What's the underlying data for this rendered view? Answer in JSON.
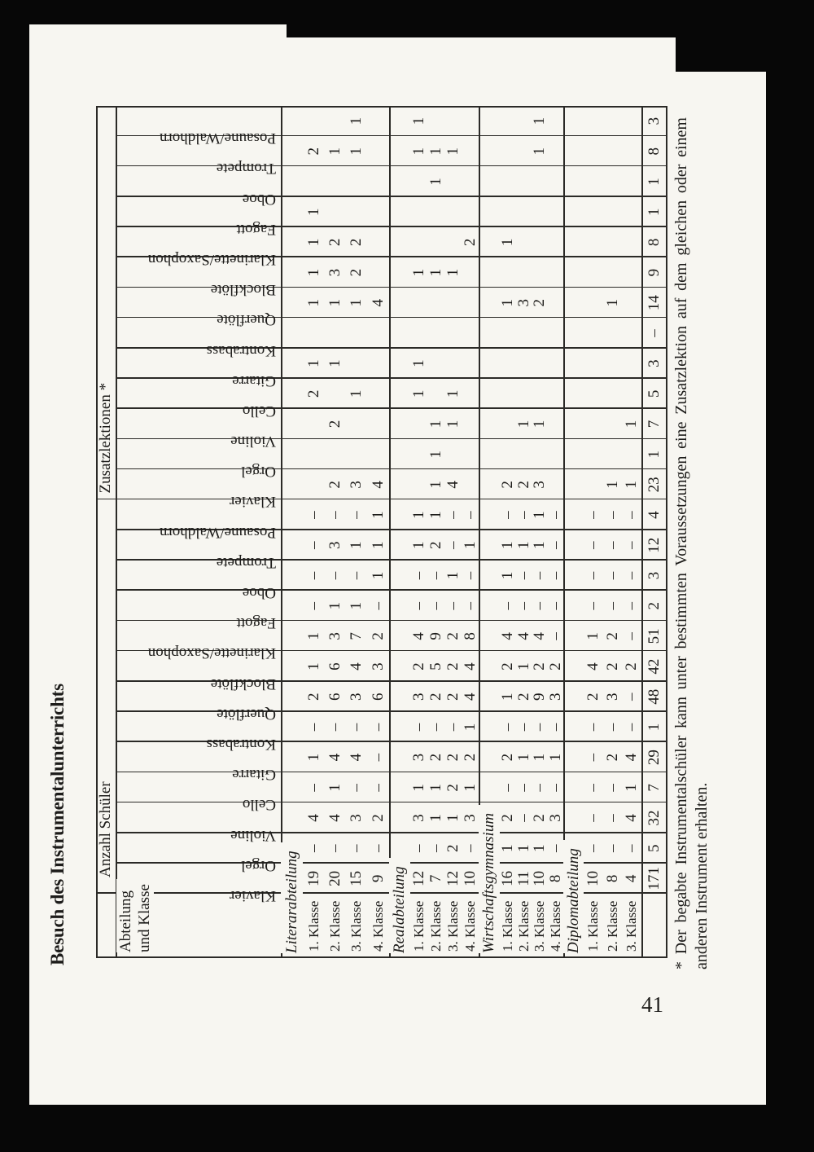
{
  "page": {
    "title": "Besuch des Instrumentalunterrichts",
    "page_number": "41",
    "footnote": {
      "line1": "* Der begabte Instrumentalschüler kann unter bestimmten Voraussetzungen eine Zusatzlektion auf dem gleichen oder einem",
      "line2": "anderen Instrument erhalten."
    }
  },
  "table": {
    "corner_header": {
      "line1": "Abteilung",
      "line2": "und Klasse"
    },
    "group_headers": {
      "anzahl": "Anzahl Schüler",
      "zusatz": "Zusatzlektionen *"
    },
    "instruments": [
      "Klavier",
      "Orgel",
      "Violine",
      "Cello",
      "Gitarre",
      "Kontrabass",
      "Querflöte",
      "Blockflöte",
      "Klarinette/Saxophon",
      "Fagott",
      "Oboe",
      "Trompete",
      "Posaune/Waldhorn"
    ],
    "sections": [
      {
        "name": "Literarabteilung",
        "rows": [
          {
            "label": "1. Klasse",
            "anzahl": [
              "19",
              "–",
              "4",
              "–",
              "1",
              "–",
              "2",
              "1",
              "1",
              "–",
              "–",
              "–",
              "–"
            ],
            "zusatz": [
              "",
              "",
              "",
              "2",
              "1",
              "",
              "1",
              "1",
              "1",
              "1",
              "",
              "2",
              ""
            ]
          },
          {
            "label": "2. Klasse",
            "anzahl": [
              "20",
              "–",
              "4",
              "1",
              "4",
              "–",
              "6",
              "6",
              "3",
              "1",
              "–",
              "3",
              "–"
            ],
            "zusatz": [
              "2",
              "",
              "2",
              "",
              "1",
              "",
              "1",
              "3",
              "2",
              "",
              "",
              "1",
              ""
            ]
          },
          {
            "label": "3. Klasse",
            "anzahl": [
              "15",
              "–",
              "3",
              "–",
              "4",
              "–",
              "3",
              "4",
              "7",
              "1",
              "–",
              "1",
              "–"
            ],
            "zusatz": [
              "3",
              "",
              "",
              "1",
              "",
              "",
              "1",
              "2",
              "2",
              "",
              "",
              "1",
              "1"
            ]
          },
          {
            "label": "4. Klasse",
            "anzahl": [
              "9",
              "–",
              "2",
              "–",
              "–",
              "–",
              "6",
              "3",
              "2",
              "–",
              "1",
              "1",
              "1"
            ],
            "zusatz": [
              "4",
              "",
              "",
              "",
              "",
              "",
              "4",
              "",
              "",
              "",
              "",
              "",
              ""
            ]
          }
        ]
      },
      {
        "name": "Realabteilung",
        "rows": [
          {
            "label": "1. Klasse",
            "anzahl": [
              "12",
              "–",
              "3",
              "1",
              "3",
              "–",
              "3",
              "2",
              "4",
              "–",
              "–",
              "1",
              "1"
            ],
            "zusatz": [
              "",
              "",
              "",
              "1",
              "1",
              "",
              "",
              "1",
              "",
              "",
              "",
              "1",
              "1"
            ]
          },
          {
            "label": "2. Klasse",
            "anzahl": [
              "7",
              "–",
              "1",
              "1",
              "2",
              "–",
              "2",
              "5",
              "9",
              "–",
              "–",
              "2",
              "1"
            ],
            "zusatz": [
              "1",
              "1",
              "1",
              "",
              "",
              "",
              "",
              "1",
              "",
              "",
              "1",
              "1",
              ""
            ]
          },
          {
            "label": "3. Klasse",
            "anzahl": [
              "12",
              "2",
              "1",
              "2",
              "2",
              "–",
              "2",
              "2",
              "2",
              "–",
              "1",
              "–",
              "–"
            ],
            "zusatz": [
              "4",
              "",
              "1",
              "1",
              "",
              "",
              "",
              "1",
              "",
              "",
              "",
              "1",
              ""
            ]
          },
          {
            "label": "4. Klasse",
            "anzahl": [
              "10",
              "–",
              "3",
              "1",
              "2",
              "1",
              "4",
              "4",
              "8",
              "–",
              "–",
              "1",
              "–"
            ],
            "zusatz": [
              "",
              "",
              "",
              "",
              "",
              "",
              "",
              "",
              "2",
              "",
              "",
              "",
              ""
            ]
          }
        ]
      },
      {
        "name": "Wirtschaftsgymnasium",
        "rows": [
          {
            "label": "1. Klasse",
            "anzahl": [
              "16",
              "1",
              "2",
              "–",
              "2",
              "–",
              "1",
              "2",
              "4",
              "–",
              "1",
              "1",
              "–"
            ],
            "zusatz": [
              "2",
              "",
              "",
              "",
              "",
              "",
              "1",
              "",
              "1",
              "",
              "",
              "",
              ""
            ]
          },
          {
            "label": "2. Klasse",
            "anzahl": [
              "11",
              "1",
              "–",
              "–",
              "1",
              "–",
              "2",
              "1",
              "4",
              "–",
              "–",
              "1",
              "–"
            ],
            "zusatz": [
              "2",
              "",
              "1",
              "",
              "",
              "",
              "3",
              "",
              "",
              "",
              "",
              "",
              ""
            ]
          },
          {
            "label": "3. Klasse",
            "anzahl": [
              "10",
              "1",
              "2",
              "–",
              "1",
              "–",
              "9",
              "2",
              "4",
              "–",
              "–",
              "1",
              "1"
            ],
            "zusatz": [
              "3",
              "",
              "1",
              "",
              "",
              "",
              "2",
              "",
              "",
              "",
              "",
              "1",
              "1"
            ]
          },
          {
            "label": "4. Klasse",
            "anzahl": [
              "8",
              "–",
              "3",
              "–",
              "1",
              "–",
              "3",
              "2",
              "–",
              "–",
              "–",
              "–",
              "–"
            ],
            "zusatz": [
              "",
              "",
              "",
              "",
              "",
              "",
              "",
              "",
              "",
              "",
              "",
              "",
              ""
            ]
          }
        ]
      },
      {
        "name": "Diplomabteilung",
        "rows": [
          {
            "label": "1. Klasse",
            "anzahl": [
              "10",
              "–",
              "–",
              "–",
              "–",
              "–",
              "2",
              "4",
              "1",
              "–",
              "–",
              "–",
              "–"
            ],
            "zusatz": [
              "",
              "",
              "",
              "",
              "",
              "",
              "",
              "",
              "",
              "",
              "",
              "",
              ""
            ]
          },
          {
            "label": "2. Klasse",
            "anzahl": [
              "8",
              "–",
              "–",
              "–",
              "2",
              "–",
              "3",
              "2",
              "2",
              "–",
              "–",
              "–",
              "–"
            ],
            "zusatz": [
              "1",
              "",
              "",
              "",
              "",
              "",
              "1",
              "",
              "",
              "",
              "",
              "",
              ""
            ]
          },
          {
            "label": "3. Klasse",
            "anzahl": [
              "4",
              "–",
              "4",
              "1",
              "4",
              "–",
              "–",
              "2",
              "–",
              "–",
              "–",
              "–",
              "–"
            ],
            "zusatz": [
              "1",
              "",
              "1",
              "",
              "",
              "",
              "",
              "",
              "",
              "",
              "",
              "",
              ""
            ]
          }
        ]
      }
    ],
    "totals_row": {
      "anzahl": [
        "171",
        "5",
        "32",
        "7",
        "29",
        "1",
        "48",
        "42",
        "51",
        "2",
        "3",
        "12",
        "4"
      ],
      "zusatz": [
        "23",
        "1",
        "7",
        "5",
        "3",
        "–",
        "14",
        "9",
        "8",
        "1",
        "1",
        "8",
        "3"
      ]
    }
  }
}
